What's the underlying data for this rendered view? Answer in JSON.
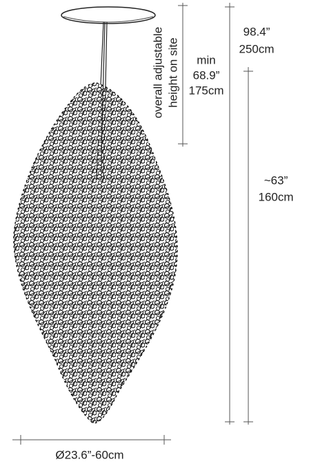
{
  "height_note": {
    "line1": "overall adjustable",
    "line2": "height on site"
  },
  "min_height": {
    "label": "min",
    "inches": "68.9”",
    "cm": "175cm"
  },
  "overall_height": {
    "inches": "98.4”",
    "cm": "250cm"
  },
  "body_height": {
    "inches": "~63”",
    "cm": "160cm"
  },
  "diameter": "Ø23.6”-60cm"
}
